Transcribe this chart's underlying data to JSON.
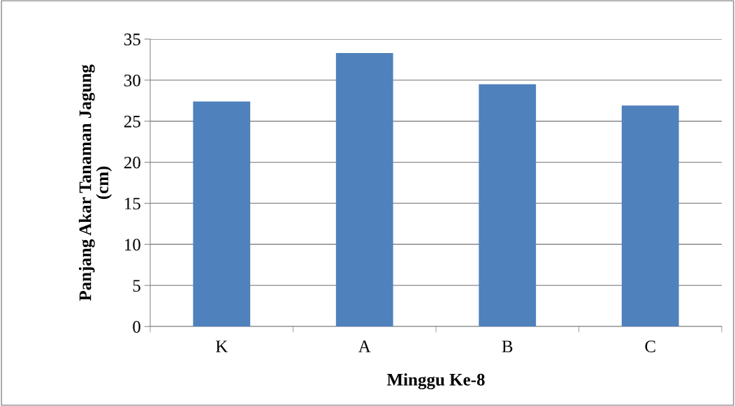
{
  "chart_data": {
    "type": "bar",
    "categories": [
      "K",
      "A",
      "B",
      "C"
    ],
    "values": [
      27.4,
      33.3,
      29.5,
      26.9
    ],
    "color": "#4f81bd",
    "ylim": [
      0,
      35
    ],
    "yticks": [
      0,
      5,
      10,
      15,
      20,
      25,
      30,
      35
    ],
    "grid": "y",
    "xlabel": "Minggu Ke-8",
    "ylabel": "Panjang Akar Tanaman Jagung\n(cm)"
  }
}
